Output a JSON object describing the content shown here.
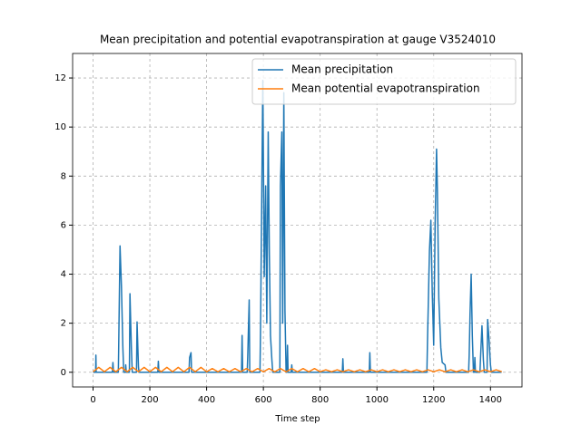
{
  "chart_data": {
    "type": "line",
    "title": "Mean precipitation and potential evapotranspiration at gauge V3524010",
    "xlabel": "Time step",
    "xlim": [
      -72,
      1511
    ],
    "ylim": [
      -0.6,
      13.0
    ],
    "xticks": [
      0,
      200,
      400,
      600,
      800,
      1000,
      1200,
      1400
    ],
    "yticks": [
      0,
      2,
      4,
      6,
      8,
      10,
      12
    ],
    "grid": true,
    "legend": "upper right",
    "series": [
      {
        "name": "Mean precipitation",
        "color": "#1f77b4",
        "x": [
          0,
          9,
          10,
          11,
          68,
          70,
          72,
          89,
          90,
          95,
          100,
          105,
          108,
          114,
          115,
          117,
          128,
          130,
          135,
          138,
          153,
          155,
          160,
          162,
          228,
          230,
          232,
          338,
          340,
          345,
          347,
          523,
          525,
          527,
          543,
          545,
          550,
          552,
          588,
          590,
          598,
          603,
          608,
          612,
          617,
          621,
          625,
          630,
          633,
          658,
          660,
          665,
          668,
          672,
          676,
          680,
          683,
          685,
          687,
          698,
          700,
          702,
          878,
          880,
          882,
          973,
          975,
          977,
          1176,
          1178,
          1185,
          1190,
          1195,
          1200,
          1205,
          1210,
          1213,
          1218,
          1225,
          1230,
          1240,
          1243,
          1323,
          1325,
          1328,
          1332,
          1336,
          1340,
          1343,
          1345,
          1347,
          1363,
          1365,
          1370,
          1375,
          1378,
          1388,
          1390,
          1395,
          1400,
          1403,
          1439
        ],
        "values": [
          0,
          0,
          0.7,
          0,
          0,
          0.4,
          0,
          0,
          0.8,
          5.15,
          3.5,
          1.0,
          0,
          0,
          0.3,
          0,
          0,
          3.2,
          1.0,
          0,
          0,
          2.05,
          0.2,
          0,
          0,
          0.45,
          0,
          0,
          0.6,
          0.8,
          0,
          0,
          1.5,
          0,
          0,
          0.7,
          2.95,
          0,
          0,
          1.8,
          11.9,
          3.9,
          7.6,
          2.0,
          9.8,
          4.8,
          1.5,
          0.5,
          0,
          0,
          7.6,
          9.8,
          2.0,
          11.4,
          2.5,
          0,
          0,
          1.1,
          0,
          0,
          0.3,
          0,
          0,
          0.55,
          0,
          0,
          0.8,
          0,
          0,
          1.2,
          4.95,
          6.2,
          3.2,
          1.1,
          6.0,
          9.1,
          7.4,
          3.0,
          1.0,
          0.4,
          0.3,
          0,
          0,
          0.7,
          2.4,
          4.0,
          1.5,
          0,
          0,
          0.6,
          0,
          0,
          0.6,
          1.9,
          0.5,
          0,
          0,
          2.15,
          1.3,
          0.3,
          0,
          0
        ]
      },
      {
        "name": "Mean potential evapotranspiration",
        "color": "#ff7f0e",
        "x": [
          0,
          20,
          40,
          60,
          80,
          100,
          120,
          140,
          160,
          180,
          200,
          220,
          240,
          260,
          280,
          300,
          320,
          340,
          360,
          380,
          400,
          420,
          440,
          460,
          480,
          500,
          520,
          540,
          560,
          580,
          600,
          620,
          640,
          660,
          680,
          700,
          720,
          740,
          760,
          780,
          800,
          820,
          840,
          860,
          880,
          900,
          920,
          940,
          960,
          980,
          1000,
          1020,
          1040,
          1060,
          1080,
          1100,
          1120,
          1140,
          1160,
          1180,
          1200,
          1220,
          1240,
          1260,
          1280,
          1300,
          1320,
          1340,
          1360,
          1380,
          1400,
          1420,
          1440
        ],
        "values": [
          0.02,
          0.2,
          0.02,
          0.2,
          0.02,
          0.2,
          0.02,
          0.2,
          0.02,
          0.2,
          0.02,
          0.2,
          0.02,
          0.2,
          0.02,
          0.2,
          0.02,
          0.2,
          0.02,
          0.2,
          0.02,
          0.15,
          0.02,
          0.15,
          0.02,
          0.15,
          0.02,
          0.15,
          0.02,
          0.15,
          0.02,
          0.15,
          0.02,
          0.15,
          0.02,
          0.15,
          0.02,
          0.15,
          0.02,
          0.15,
          0.02,
          0.1,
          0.02,
          0.1,
          0.02,
          0.1,
          0.02,
          0.1,
          0.02,
          0.1,
          0.02,
          0.1,
          0.02,
          0.1,
          0.02,
          0.1,
          0.02,
          0.1,
          0.02,
          0.1,
          0.02,
          0.1,
          0.02,
          0.1,
          0.02,
          0.1,
          0.02,
          0.1,
          0.02,
          0.1,
          0.02,
          0.1,
          0.02
        ]
      }
    ]
  }
}
